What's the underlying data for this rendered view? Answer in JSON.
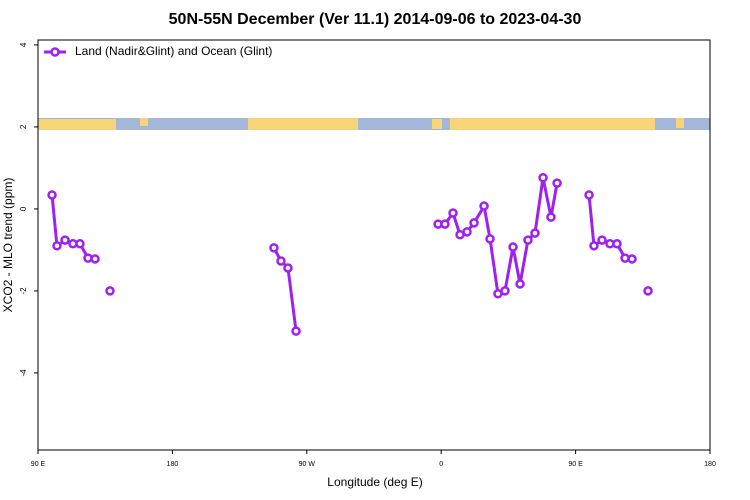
{
  "chart_data": {
    "type": "line",
    "title": "50N-55N December (Ver 11.1)   2014-09-06 to 2023-04-30",
    "x_label": "Longitude (deg E)",
    "y_label": "XCO2 - MLO trend (ppm)",
    "xlim": [
      90,
      540
    ],
    "ylim": [
      -5.88,
      4.12
    ],
    "xticks": [
      {
        "value": 90,
        "label": "90 E"
      },
      180,
      {
        "value": 270,
        "label": "90 W"
      },
      {
        "value": 360,
        "label": "0"
      },
      {
        "value": 450,
        "label": "90 E"
      },
      {
        "value": 540,
        "label": "180"
      }
    ],
    "yticks": [
      -4,
      -2,
      0,
      2,
      4
    ],
    "legend": "top-left",
    "series": [
      {
        "name": "Land (Nadir&Glint) and Ocean (Glint)",
        "color": "#a020f0",
        "x": [
          99.4,
          102.7,
          108.1,
          113.4,
          118.1,
          123.5,
          128.2,
          null,
          138.2,
          null,
          248.0,
          252.7,
          257.4,
          262.8,
          null,
          357.9,
          362.5,
          367.9,
          372.6,
          377.3,
          382.0,
          388.7,
          392.7,
          398.0,
          402.7,
          408.1,
          412.8,
          418.1,
          422.8,
          428.2,
          433.5,
          437.6,
          null,
          459.0,
          462.3,
          467.7,
          473.0,
          477.7,
          483.1,
          487.8,
          null,
          498.5
        ],
        "values": [
          0.34,
          -0.9,
          -0.76,
          -0.85,
          -0.85,
          -1.2,
          -1.22,
          null,
          -2.0,
          null,
          -0.95,
          -1.27,
          -1.44,
          -2.98,
          null,
          -0.37,
          -0.37,
          -0.1,
          -0.63,
          -0.56,
          -0.34,
          0.07,
          -0.73,
          -2.07,
          -2.0,
          -0.93,
          -1.83,
          -0.76,
          -0.59,
          0.76,
          -0.2,
          0.63,
          null,
          0.34,
          -0.9,
          -0.76,
          -0.85,
          -0.85,
          -1.2,
          -1.22,
          null,
          -2.0
        ]
      }
    ]
  }
}
